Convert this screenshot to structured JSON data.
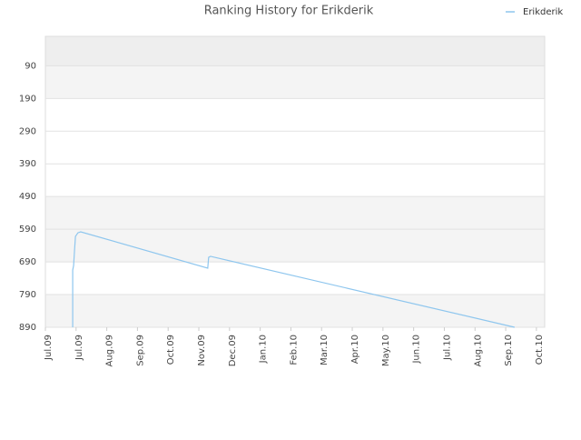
{
  "chart_data": {
    "type": "line",
    "title": "Ranking History for Erikderik",
    "x": [
      0.89,
      0.89,
      0.92,
      0.95,
      0.98,
      1.06,
      1.15,
      5.29,
      5.32,
      5.38,
      15.29
    ],
    "series": [
      {
        "name": "Erikderik",
        "color": "#8ec6ee",
        "values": [
          890,
          715,
          701,
          654,
          612,
          601,
          598,
          709,
          676,
          673,
          890
        ]
      }
    ],
    "xlim": [
      0,
      16.27
    ],
    "xticks": [
      {
        "value": 0,
        "label": "Jul.09"
      },
      {
        "value": 1,
        "label": "Jul.09"
      },
      {
        "value": 2,
        "label": "Aug.09"
      },
      {
        "value": 3,
        "label": "Sep.09"
      },
      {
        "value": 4,
        "label": "Oct.09"
      },
      {
        "value": 5,
        "label": "Nov.09"
      },
      {
        "value": 6,
        "label": "Dec.09"
      },
      {
        "value": 7,
        "label": "Jan.10"
      },
      {
        "value": 8,
        "label": "Feb.10"
      },
      {
        "value": 9,
        "label": "Mar.10"
      },
      {
        "value": 10,
        "label": "Apr.10"
      },
      {
        "value": 11,
        "label": "May.10"
      },
      {
        "value": 12,
        "label": "Jun.10"
      },
      {
        "value": 13,
        "label": "Jul.10"
      },
      {
        "value": 14,
        "label": "Aug.10"
      },
      {
        "value": 15,
        "label": "Sep.10"
      },
      {
        "value": 16,
        "label": "Oct.10"
      }
    ],
    "ylim": [
      890,
      0
    ],
    "yticks": [
      90,
      190,
      290,
      390,
      490,
      590,
      690,
      790,
      890
    ],
    "grid": true,
    "legend": "top-right"
  }
}
